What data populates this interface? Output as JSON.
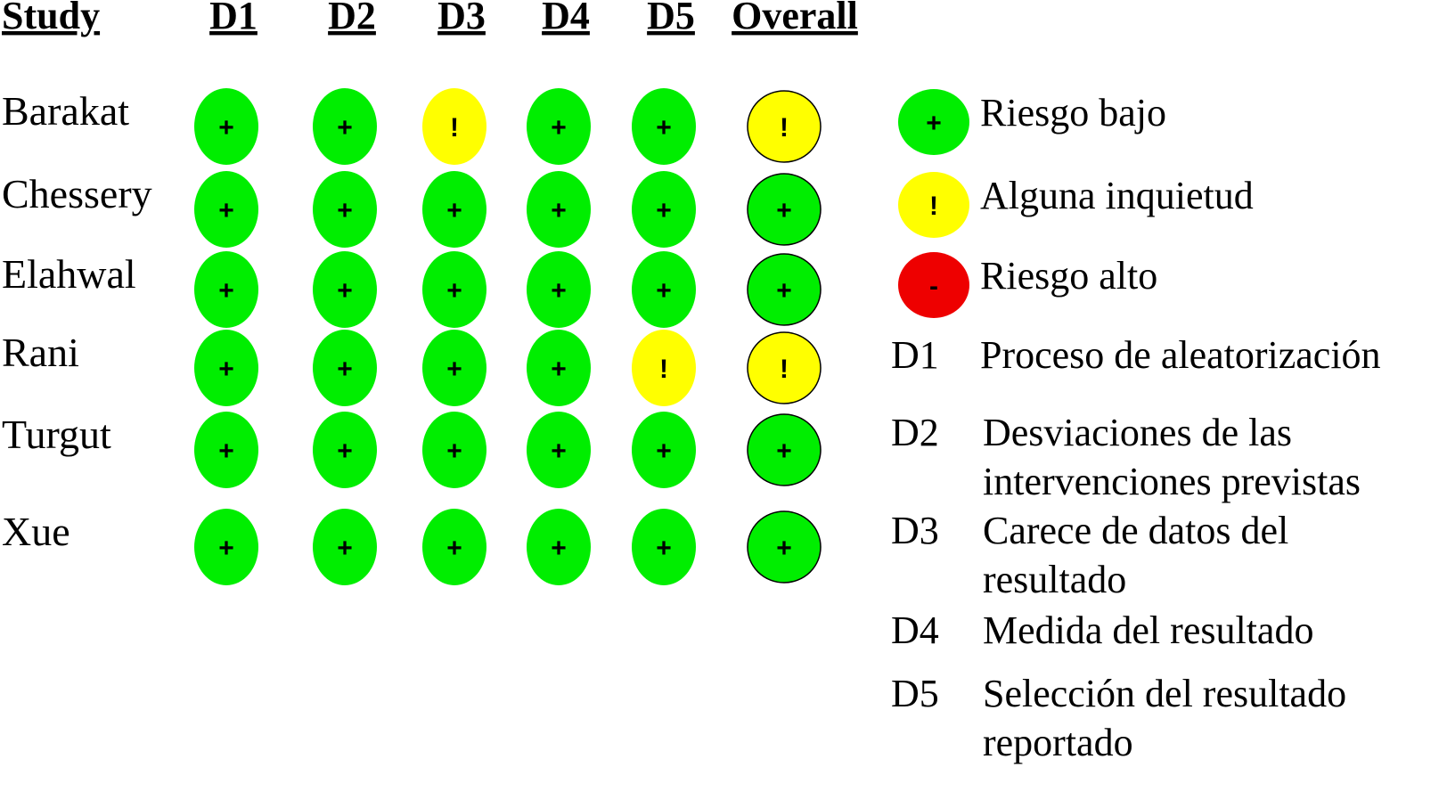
{
  "chart_data": {
    "type": "table",
    "columns": [
      "Study",
      "D1",
      "D2",
      "D3",
      "D4",
      "D5",
      "Overall"
    ],
    "rows": [
      {
        "study": "Barakat",
        "values": [
          "+",
          "+",
          "!",
          "+",
          "+",
          "!"
        ]
      },
      {
        "study": "Chessery",
        "values": [
          "+",
          "+",
          "+",
          "+",
          "+",
          "+"
        ]
      },
      {
        "study": "Elahwal",
        "values": [
          "+",
          "+",
          "+",
          "+",
          "+",
          "+"
        ]
      },
      {
        "study": "Rani",
        "values": [
          "+",
          "+",
          "+",
          "+",
          "!",
          "!"
        ]
      },
      {
        "study": "Turgut",
        "values": [
          "+",
          "+",
          "+",
          "+",
          "+",
          "+"
        ]
      },
      {
        "study": "Xue",
        "values": [
          "+",
          "+",
          "+",
          "+",
          "+",
          "+"
        ]
      }
    ],
    "judgements": {
      "+": {
        "label": "Riesgo bajo",
        "color": "#00ee00"
      },
      "!": {
        "label": "Alguna inquietud",
        "color": "#ffff00"
      },
      "-": {
        "label": "Riesgo alto",
        "color": "#ee0000"
      }
    },
    "legend_order": [
      "+",
      "!",
      "-"
    ],
    "domains": [
      {
        "code": "D1",
        "lines": [
          "Proceso de aleatorización"
        ]
      },
      {
        "code": "D2",
        "lines": [
          "Desviaciones de las",
          "intervenciones previstas"
        ]
      },
      {
        "code": "D3",
        "lines": [
          "Carece de datos del",
          "resultado"
        ]
      },
      {
        "code": "D4",
        "lines": [
          "Medida del resultado"
        ]
      },
      {
        "code": "D5",
        "lines": [
          "Selección del resultado",
          "reportado"
        ]
      }
    ],
    "legend_placement": "right",
    "grid": false
  }
}
